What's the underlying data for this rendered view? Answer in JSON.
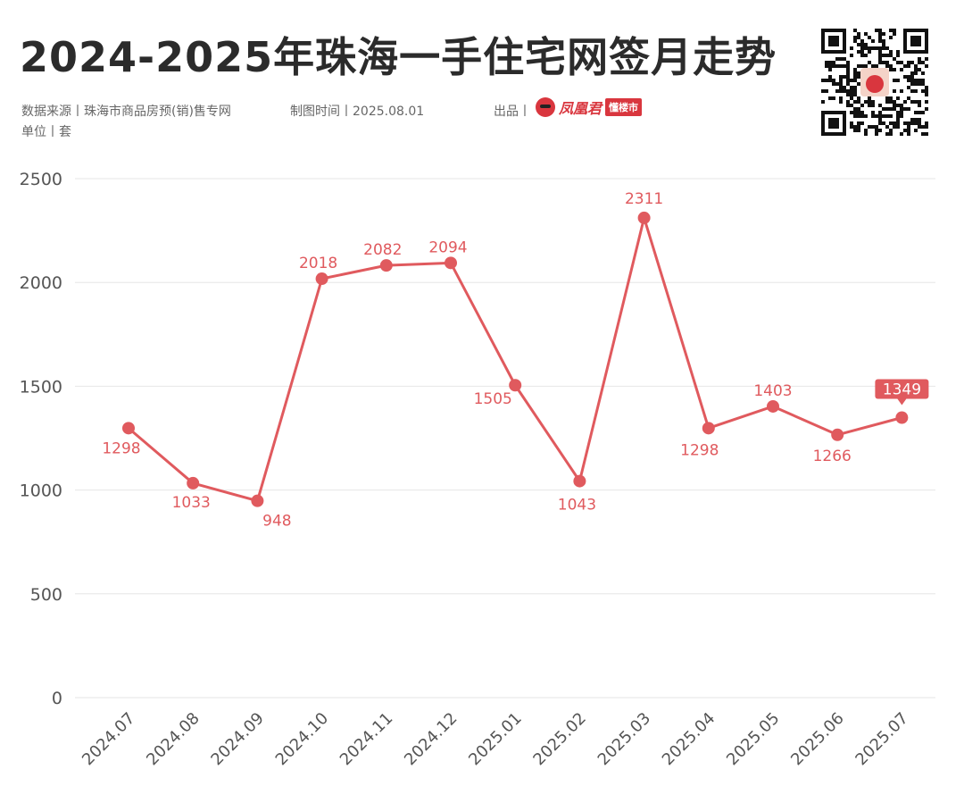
{
  "header": {
    "title": "2024-2025年珠海一手住宅网签月走势",
    "source": "数据来源丨珠海市商品房预(销)售专网",
    "made_time": "制图时间丨2025.08.01",
    "producer_label": "出品丨",
    "unit": "单位丨套",
    "brand_name": "凤凰君",
    "brand_tag": "懂楼市"
  },
  "colors": {
    "line": "#e05a5e",
    "highlight_bg": "#e05a5e",
    "grid": "#e6e6e6",
    "tick": "#555555"
  },
  "chart_data": {
    "type": "line",
    "title": "2024-2025年珠海一手住宅网签月走势",
    "xlabel": "",
    "ylabel": "",
    "unit": "套",
    "ylim": [
      0,
      2500
    ],
    "yticks": [
      0,
      500,
      1000,
      1500,
      2000,
      2500
    ],
    "grid": true,
    "categories": [
      "2024.07",
      "2024.08",
      "2024.09",
      "2024.10",
      "2024.11",
      "2024.12",
      "2025.01",
      "2025.02",
      "2025.03",
      "2025.04",
      "2025.05",
      "2025.06",
      "2025.07"
    ],
    "series": [
      {
        "values": [
          1298,
          1033,
          948,
          2018,
          2082,
          2094,
          1505,
          1043,
          2311,
          1298,
          1403,
          1266,
          1349
        ]
      }
    ],
    "data_labels": [
      "1298",
      "1033",
      "948",
      "2018",
      "2082",
      "2094",
      "1505",
      "1043",
      "2311",
      "1298",
      "1403",
      "1266",
      "1349"
    ],
    "highlight_index": 12
  }
}
